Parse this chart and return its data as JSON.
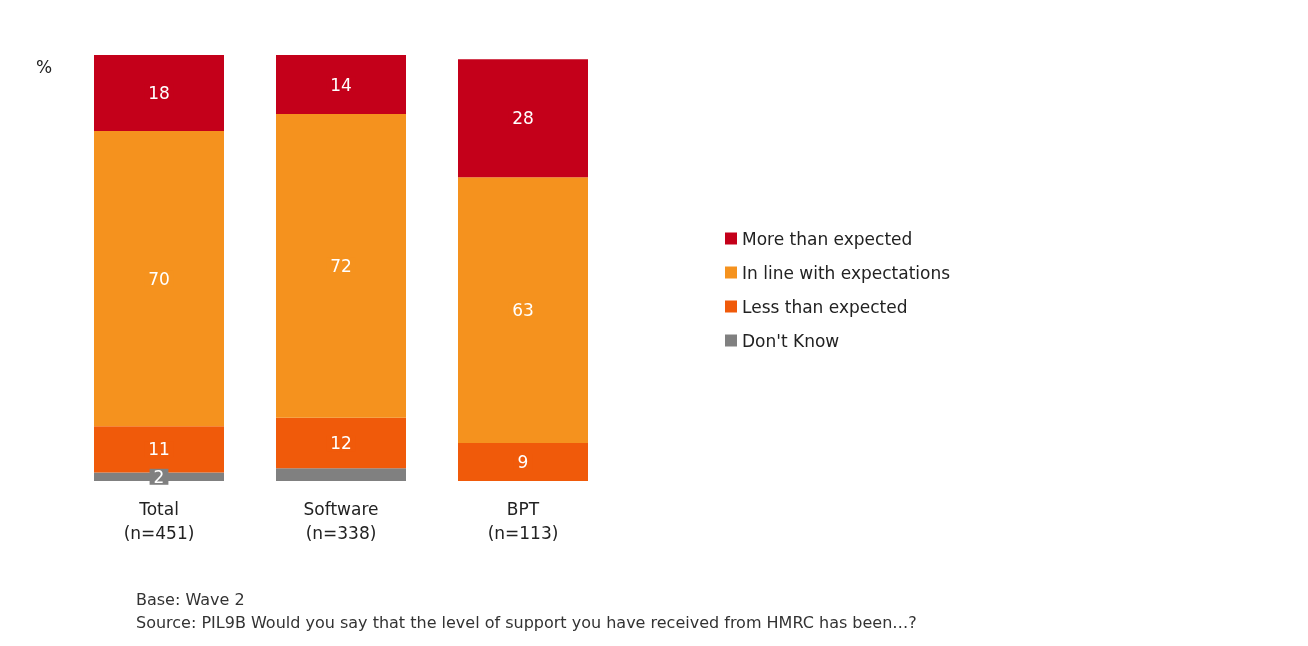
{
  "chart_data": {
    "type": "bar",
    "stacked": true,
    "ylabel": "%",
    "categories": [
      "Total\n(n=451)",
      "Software\n(n=338)",
      "BPT\n(n=113)"
    ],
    "series": [
      {
        "name": "Don't Know",
        "color": "#808080",
        "values": [
          2,
          3,
          null
        ],
        "value_labels": [
          "2",
          null,
          null
        ]
      },
      {
        "name": "Less than expected",
        "color": "#f05a0a",
        "values": [
          11,
          12,
          9
        ]
      },
      {
        "name": "In line with expectations",
        "color": "#f5921e",
        "values": [
          70,
          72,
          63
        ]
      },
      {
        "name": "More than expected",
        "color": "#c4001a",
        "values": [
          18,
          14,
          28
        ]
      }
    ],
    "data_labels": true,
    "legend": "right",
    "annotations": [
      "Base: Wave 2",
      "Source: PIL9B Would you say that the level of support you have received from HMRC has been…?"
    ]
  }
}
